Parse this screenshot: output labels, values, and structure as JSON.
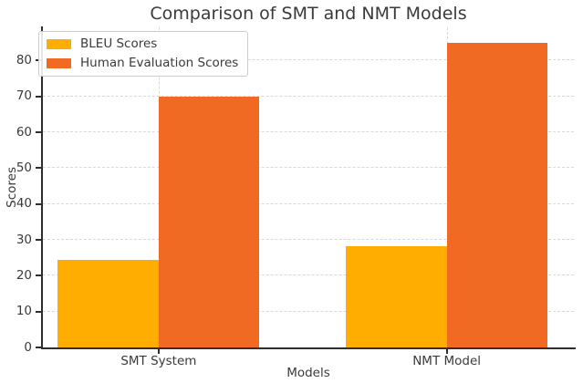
{
  "chart_data": {
    "type": "bar",
    "title": "Comparison of SMT and NMT Models",
    "xlabel": "Models",
    "ylabel": "Scores",
    "categories": [
      "SMT System",
      "NMT Model"
    ],
    "series": [
      {
        "name": "BLEU Scores",
        "color": "#FFAD00",
        "values": [
          24.5,
          28.3
        ]
      },
      {
        "name": "Human Evaluation Scores",
        "color": "#F16A23",
        "values": [
          70,
          85
        ]
      }
    ],
    "ylim": [
      0,
      89.25
    ],
    "yticks": [
      0,
      10,
      20,
      30,
      40,
      50,
      60,
      70,
      80
    ],
    "grid": true,
    "grid_style": "dashed",
    "legend_position": "upper left",
    "colors": {
      "grid": "#d9d9d9",
      "spine": "#2e2e2e",
      "text": "#3a3a3a",
      "legend_border": "#cccccc",
      "background": "#ffffff"
    }
  }
}
